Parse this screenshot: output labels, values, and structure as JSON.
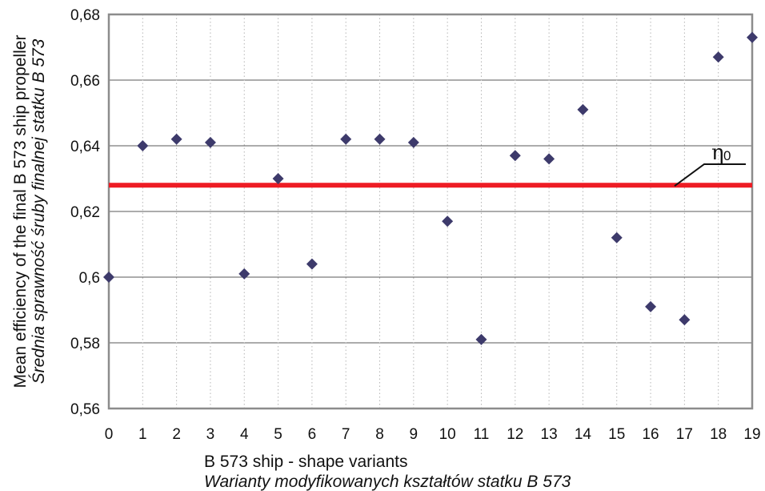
{
  "chart_data": {
    "type": "scatter",
    "xlabel": "B 573 ship - shape variants",
    "xlabel_secondary": "Warianty modyfikowanych kształtów statku B 573",
    "ylabel": "Mean efficiency of the final B 573 ship propeller",
    "ylabel_secondary": "Średnia sprawność śruby finalnej statku B 573",
    "xlim": [
      0,
      19
    ],
    "ylim": [
      0.56,
      0.68
    ],
    "grid": "horizontal solid, vertical dotted",
    "x_ticks": [
      "0",
      "1",
      "2",
      "3",
      "4",
      "5",
      "6",
      "7",
      "8",
      "9",
      "10",
      "11",
      "12",
      "13",
      "14",
      "15",
      "16",
      "17",
      "18",
      "19"
    ],
    "y_ticks": [
      {
        "value": 0.56,
        "label": "0,56"
      },
      {
        "value": 0.58,
        "label": "0,58"
      },
      {
        "value": 0.6,
        "label": "0,6"
      },
      {
        "value": 0.62,
        "label": "0,62"
      },
      {
        "value": 0.64,
        "label": "0,64"
      },
      {
        "value": 0.66,
        "label": "0,66"
      },
      {
        "value": 0.68,
        "label": "0,68"
      }
    ],
    "series": [
      {
        "marker": "diamond",
        "color": "#3d3a6b",
        "x": [
          0,
          1,
          2,
          3,
          4,
          5,
          6,
          7,
          8,
          9,
          10,
          11,
          12,
          13,
          14,
          15,
          16,
          17,
          18,
          19
        ],
        "y": [
          0.6,
          0.64,
          0.642,
          0.641,
          0.601,
          0.63,
          0.604,
          0.642,
          0.642,
          0.641,
          0.617,
          0.581,
          0.637,
          0.636,
          0.651,
          0.612,
          0.591,
          0.587,
          0.667,
          0.673
        ]
      }
    ],
    "reference_line": {
      "y": 0.628,
      "color": "#ee1c24",
      "label": "η",
      "label_subscript": "0"
    }
  }
}
